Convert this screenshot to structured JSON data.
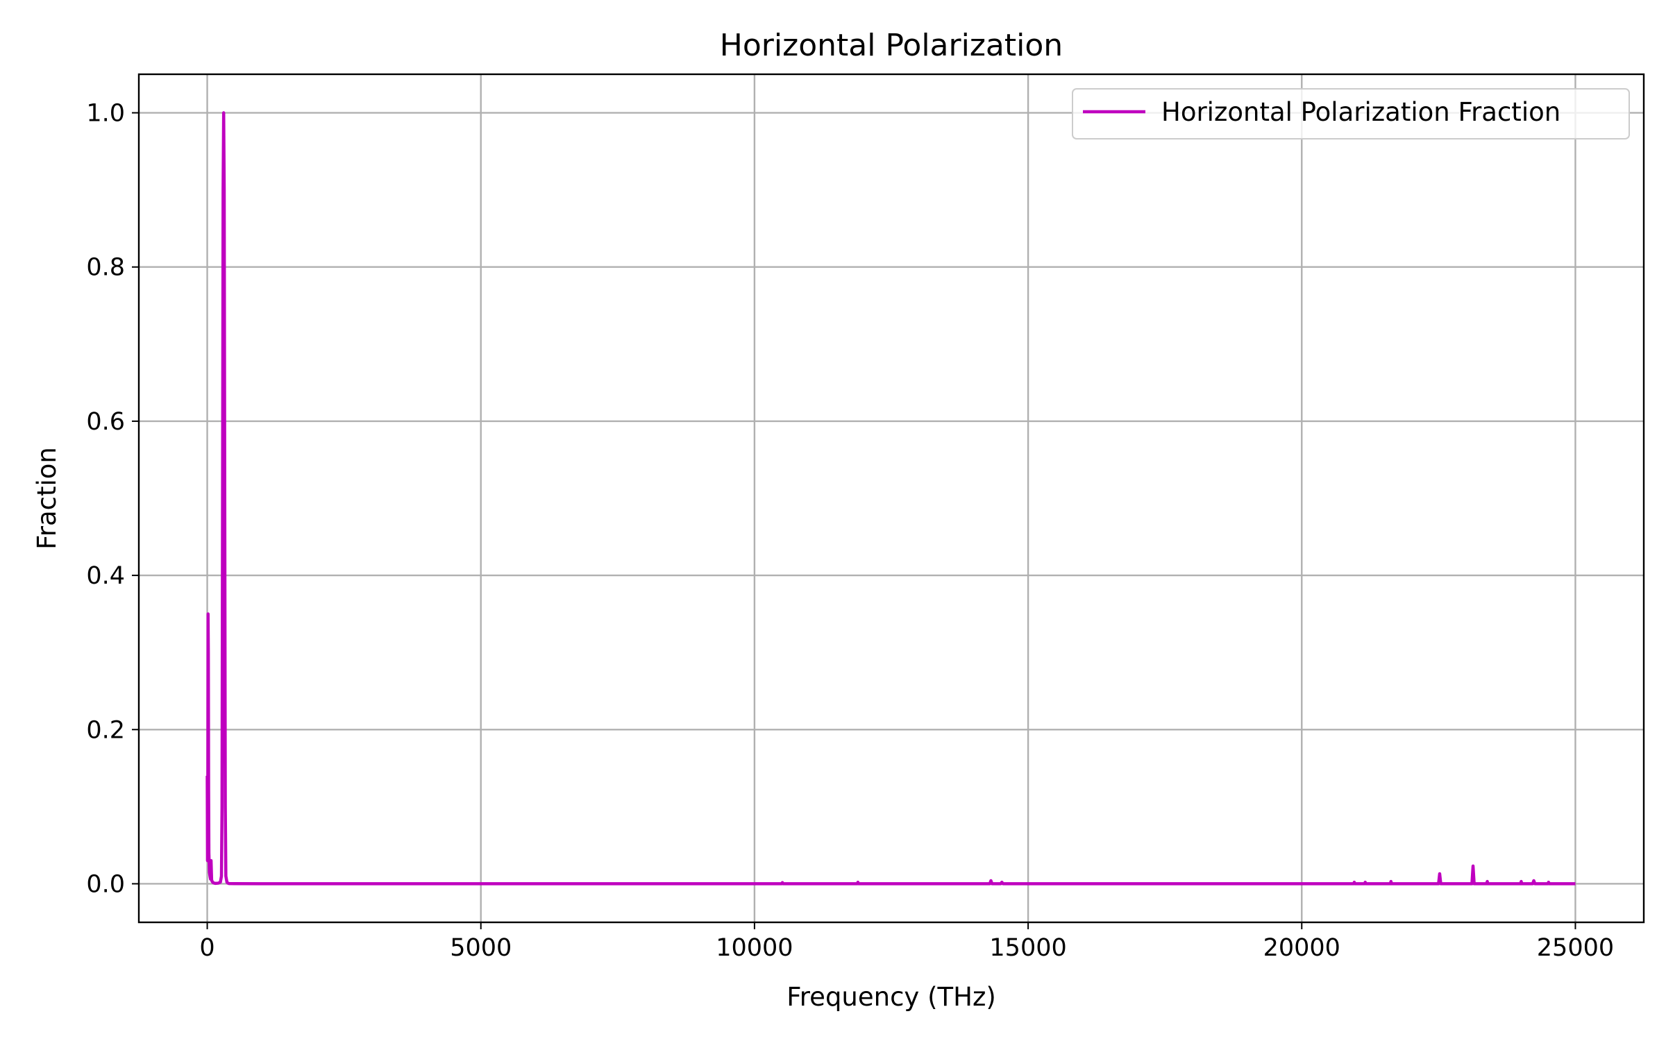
{
  "chart_data": {
    "type": "line",
    "title": "Horizontal Polarization",
    "xlabel": "Frequency (THz)",
    "ylabel": "Fraction",
    "xlim": [
      -1250,
      26250
    ],
    "ylim": [
      -0.05,
      1.05
    ],
    "x_ticks": [
      0,
      5000,
      10000,
      15000,
      20000,
      25000
    ],
    "x_tick_labels": [
      "0",
      "5000",
      "10000",
      "15000",
      "20000",
      "25000"
    ],
    "y_ticks": [
      0.0,
      0.2,
      0.4,
      0.6,
      0.8,
      1.0
    ],
    "y_tick_labels": [
      "0.0",
      "0.2",
      "0.4",
      "0.6",
      "0.8",
      "1.0"
    ],
    "grid": true,
    "legend_position": "top-right",
    "color": "#bf00bf",
    "series": [
      {
        "name": "Horizontal Polarization Fraction",
        "color": "#bf00bf",
        "x": [
          0,
          5,
          10,
          15,
          20,
          25,
          30,
          40,
          50,
          60,
          70,
          80,
          90,
          100,
          120,
          150,
          200,
          240,
          260,
          270,
          280,
          290,
          300,
          310,
          320,
          330,
          340,
          360,
          380,
          400,
          500,
          1000,
          5000,
          10500,
          10510,
          10520,
          11880,
          11890,
          11900,
          14300,
          14320,
          14340,
          14500,
          14520,
          14540,
          20950,
          20960,
          20970,
          21150,
          21160,
          21170,
          21620,
          21630,
          21640,
          22480,
          22500,
          22520,
          22540,
          23090,
          23110,
          23130,
          23150,
          23380,
          23390,
          23400,
          24000,
          24010,
          24020,
          24220,
          24240,
          24260,
          24500,
          24510,
          24520,
          25000
        ],
        "y": [
          0.14,
          0.03,
          0.08,
          0.35,
          0.3,
          0.12,
          0.04,
          0.015,
          0.01,
          0.006,
          0.03,
          0.005,
          0.003,
          0.002,
          0.001,
          0.0005,
          0.0008,
          0.002,
          0.01,
          0.1,
          0.5,
          0.9,
          1.0,
          0.9,
          0.5,
          0.1,
          0.01,
          0.002,
          0.0008,
          0.0003,
          0.0002,
          0.0001,
          0.0001,
          0.0001,
          0.0015,
          0.0001,
          0.0001,
          0.002,
          0.0001,
          0.0001,
          0.004,
          0.0001,
          0.0001,
          0.002,
          0.0001,
          0.0001,
          0.002,
          0.0001,
          0.0001,
          0.002,
          0.0001,
          0.0001,
          0.003,
          0.0001,
          0.0001,
          0.0001,
          0.013,
          0.0001,
          0.0001,
          0.0001,
          0.023,
          0.0001,
          0.0001,
          0.003,
          0.0001,
          0.0001,
          0.003,
          0.0001,
          0.0001,
          0.004,
          0.0001,
          0.0001,
          0.002,
          0.0001,
          0.0001
        ]
      }
    ]
  }
}
